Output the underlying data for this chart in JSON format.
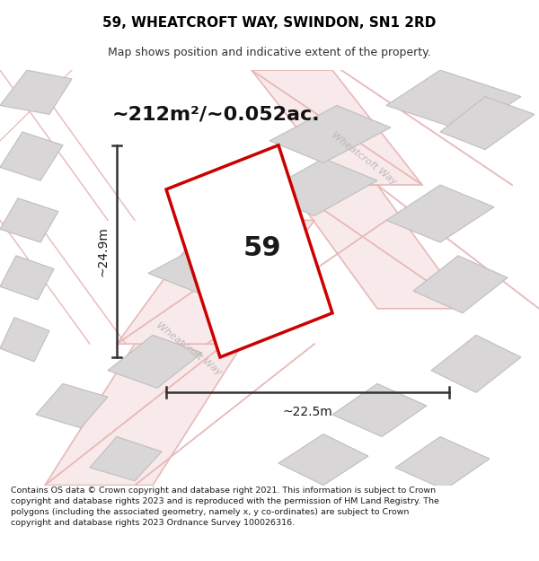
{
  "title": "59, WHEATCROFT WAY, SWINDON, SN1 2RD",
  "subtitle": "Map shows position and indicative extent of the property.",
  "area_label": "~212m²/~0.052ac.",
  "width_label": "~22.5m",
  "height_label": "~24.9m",
  "property_number": "59",
  "footer": "Contains OS data © Crown copyright and database right 2021. This information is subject to Crown copyright and database rights 2023 and is reproduced with the permission of HM Land Registry. The polygons (including the associated geometry, namely x, y co-ordinates) are subject to Crown copyright and database rights 2023 Ordnance Survey 100026316.",
  "map_bg": "#f2f0f0",
  "property_outline_color": "#cc0000",
  "dim_line_color": "#333333",
  "road_fill": "#f8eaea",
  "road_edge": "#e8b8b8",
  "building_fill": "#d8d6d6",
  "building_edge": "#c0bebe",
  "road_label_color": "#c0b8b8",
  "prop_fill": "#ffffff"
}
